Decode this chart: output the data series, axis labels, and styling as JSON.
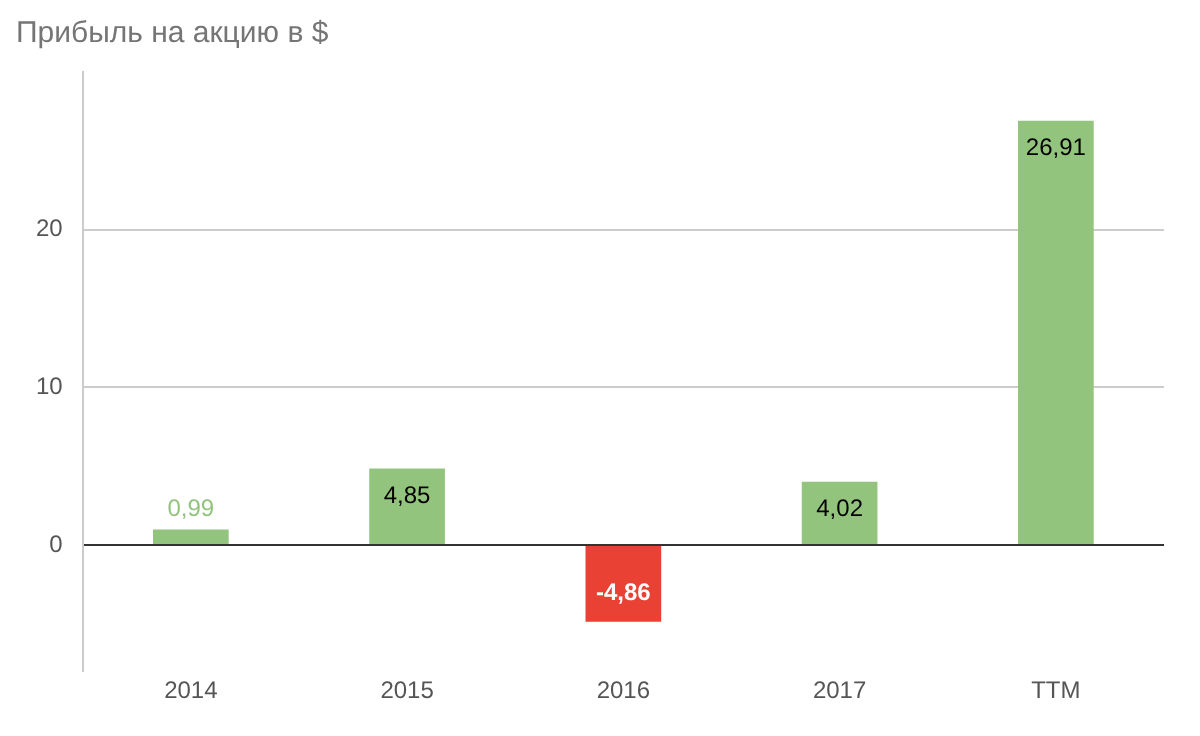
{
  "chart_data": {
    "type": "bar",
    "title": "Прибыль на акцию в $",
    "categories": [
      "2014",
      "2015",
      "2016",
      "2017",
      "TTM"
    ],
    "values": [
      0.99,
      4.85,
      -4.86,
      4.02,
      26.91
    ],
    "colors": [
      "#93c47d",
      "#93c47d",
      "#e94235",
      "#93c47d",
      "#93c47d"
    ],
    "value_labels": [
      "0,99",
      "4,85",
      "-4,86",
      "4,02",
      "26,91"
    ],
    "ylim": [
      -8,
      30
    ],
    "yticks": [
      0,
      10,
      20
    ],
    "grid": "y",
    "legend": false
  }
}
